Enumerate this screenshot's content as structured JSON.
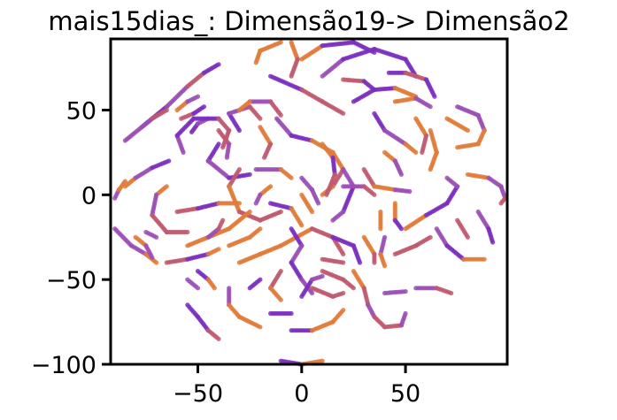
{
  "chart_data": {
    "type": "scatter",
    "title": "mais15dias_: Dimensão19-> Dimensão2",
    "xlabel": "",
    "ylabel": "",
    "xlim": [
      -92,
      99
    ],
    "ylim": [
      -100,
      92
    ],
    "xticks": [
      -50,
      0,
      50
    ],
    "xtick_labels": [
      "−50",
      "0",
      "50"
    ],
    "yticks": [
      -100,
      -50,
      0,
      50
    ],
    "ytick_labels": [
      "−100",
      "−50",
      "0",
      "50"
    ],
    "grid": false,
    "legend": "none",
    "colors": [
      "#e07b39",
      "#9b4fb5",
      "#c0596f",
      "#7b2fbe"
    ],
    "series": [
      {
        "points": [
          [
            -85,
            5
          ],
          [
            -80,
            10
          ],
          [
            -72,
            16
          ],
          [
            -64,
            20
          ]
        ]
      },
      {
        "points": [
          [
            -90,
            -2
          ],
          [
            -88,
            3
          ],
          [
            -85,
            8
          ]
        ]
      },
      {
        "points": [
          [
            -85,
            32
          ],
          [
            -75,
            42
          ],
          [
            -65,
            52
          ],
          [
            -55,
            64
          ],
          [
            -47,
            72
          ],
          [
            -40,
            77
          ]
        ]
      },
      {
        "points": [
          [
            -77,
            40
          ],
          [
            -72,
            45
          ],
          [
            -65,
            50
          ]
        ]
      },
      {
        "points": [
          [
            -60,
            50
          ],
          [
            -55,
            55
          ],
          [
            -50,
            58
          ]
        ]
      },
      {
        "points": [
          [
            -58,
            45
          ],
          [
            -52,
            48
          ],
          [
            -47,
            52
          ]
        ]
      },
      {
        "points": [
          [
            -53,
            37
          ],
          [
            -50,
            42
          ],
          [
            -45,
            45
          ]
        ]
      },
      {
        "points": [
          [
            -40,
            38
          ],
          [
            -35,
            30
          ],
          [
            -36,
            22
          ]
        ]
      },
      {
        "points": [
          [
            -57,
            25
          ],
          [
            -60,
            35
          ],
          [
            -52,
            45
          ],
          [
            -40,
            45
          ],
          [
            -35,
            38
          ],
          [
            -38,
            28
          ]
        ]
      },
      {
        "points": [
          [
            -40,
            30
          ],
          [
            -45,
            20
          ],
          [
            -35,
            10
          ],
          [
            -25,
            12
          ]
        ]
      },
      {
        "points": [
          [
            -30,
            38
          ],
          [
            -35,
            48
          ],
          [
            -25,
            52
          ],
          [
            -20,
            45
          ]
        ]
      },
      {
        "points": [
          [
            -25,
            55
          ],
          [
            -15,
            55
          ],
          [
            -10,
            47
          ]
        ]
      },
      {
        "points": [
          [
            -30,
            50
          ],
          [
            -25,
            55
          ]
        ]
      },
      {
        "points": [
          [
            -20,
            40
          ],
          [
            -15,
            30
          ],
          [
            -18,
            22
          ]
        ]
      },
      {
        "points": [
          [
            -12,
            45
          ],
          [
            -5,
            35
          ]
        ]
      },
      {
        "points": [
          [
            -10,
            90
          ],
          [
            -20,
            85
          ],
          [
            -22,
            78
          ]
        ]
      },
      {
        "points": [
          [
            -5,
            90
          ],
          [
            -2,
            80
          ],
          [
            -5,
            70
          ]
        ]
      },
      {
        "points": [
          [
            -15,
            70
          ],
          [
            0,
            62
          ],
          [
            10,
            55
          ],
          [
            20,
            48
          ]
        ]
      },
      {
        "points": [
          [
            10,
            70
          ],
          [
            20,
            80
          ],
          [
            35,
            86
          ],
          [
            50,
            80
          ],
          [
            55,
            70
          ]
        ]
      },
      {
        "points": [
          [
            0,
            80
          ],
          [
            10,
            88
          ],
          [
            25,
            90
          ],
          [
            35,
            84
          ]
        ]
      },
      {
        "points": [
          [
            20,
            68
          ],
          [
            30,
            67
          ],
          [
            35,
            62
          ]
        ]
      },
      {
        "points": [
          [
            25,
            55
          ],
          [
            35,
            62
          ],
          [
            45,
            63
          ],
          [
            55,
            58
          ]
        ]
      },
      {
        "points": [
          [
            42,
            72
          ],
          [
            50,
            72
          ],
          [
            60,
            68
          ],
          [
            64,
            58
          ]
        ]
      },
      {
        "points": [
          [
            45,
            55
          ],
          [
            55,
            57
          ],
          [
            62,
            52
          ]
        ]
      },
      {
        "points": [
          [
            35,
            48
          ],
          [
            40,
            38
          ],
          [
            50,
            30
          ],
          [
            55,
            25
          ]
        ]
      },
      {
        "points": [
          [
            55,
            45
          ],
          [
            60,
            35
          ],
          [
            58,
            25
          ]
        ]
      },
      {
        "points": [
          [
            62,
            38
          ],
          [
            65,
            25
          ],
          [
            62,
            15
          ]
        ]
      },
      {
        "points": [
          [
            75,
            52
          ],
          [
            85,
            47
          ],
          [
            88,
            38
          ],
          [
            85,
            30
          ],
          [
            75,
            28
          ]
        ]
      },
      {
        "points": [
          [
            70,
            45
          ],
          [
            80,
            38
          ]
        ]
      },
      {
        "points": [
          [
            -5,
            35
          ],
          [
            5,
            32
          ],
          [
            15,
            25
          ],
          [
            20,
            15
          ],
          [
            15,
            5
          ],
          [
            10,
            0
          ]
        ]
      },
      {
        "points": [
          [
            10,
            30
          ],
          [
            15,
            22
          ],
          [
            16,
            12
          ],
          [
            12,
            0
          ]
        ]
      },
      {
        "points": [
          [
            -30,
            15
          ],
          [
            -35,
            5
          ],
          [
            -30,
            -10
          ],
          [
            -20,
            -15
          ],
          [
            -10,
            -10
          ]
        ]
      },
      {
        "points": [
          [
            -22,
            15
          ],
          [
            -10,
            15
          ],
          [
            -5,
            10
          ]
        ]
      },
      {
        "points": [
          [
            -15,
            5
          ],
          [
            -20,
            0
          ],
          [
            -22,
            -5
          ]
        ]
      },
      {
        "points": [
          [
            -15,
            -5
          ],
          [
            -5,
            -8
          ],
          [
            0,
            -18
          ]
        ]
      },
      {
        "points": [
          [
            0,
            10
          ],
          [
            5,
            3
          ],
          [
            8,
            -5
          ]
        ]
      },
      {
        "points": [
          [
            0,
            0
          ],
          [
            5,
            -10
          ]
        ]
      },
      {
        "points": [
          [
            20,
            15
          ],
          [
            25,
            5
          ],
          [
            20,
            -10
          ],
          [
            15,
            -15
          ]
        ]
      },
      {
        "points": [
          [
            20,
            5
          ],
          [
            30,
            5
          ],
          [
            35,
            0
          ]
        ]
      },
      {
        "points": [
          [
            30,
            15
          ],
          [
            35,
            5
          ],
          [
            45,
            3
          ],
          [
            52,
            2
          ]
        ]
      },
      {
        "points": [
          [
            40,
            25
          ],
          [
            45,
            20
          ],
          [
            48,
            12
          ]
        ]
      },
      {
        "points": [
          [
            -65,
            5
          ],
          [
            -70,
            0
          ],
          [
            -72,
            -12
          ],
          [
            -65,
            -22
          ],
          [
            -55,
            -22
          ]
        ]
      },
      {
        "points": [
          [
            -60,
            -10
          ],
          [
            -50,
            -8
          ],
          [
            -40,
            -5
          ],
          [
            -30,
            -5
          ]
        ]
      },
      {
        "points": [
          [
            -55,
            -30
          ],
          [
            -45,
            -25
          ],
          [
            -35,
            -20
          ],
          [
            -25,
            -10
          ]
        ]
      },
      {
        "points": [
          [
            -90,
            -20
          ],
          [
            -82,
            -30
          ],
          [
            -75,
            -35
          ],
          [
            -70,
            -40
          ]
        ]
      },
      {
        "points": [
          [
            -80,
            -25
          ],
          [
            -75,
            -30
          ],
          [
            -72,
            -37
          ]
        ]
      },
      {
        "points": [
          [
            -75,
            -22
          ],
          [
            -70,
            -25
          ]
        ]
      },
      {
        "points": [
          [
            -65,
            -40
          ],
          [
            -55,
            -38
          ],
          [
            -45,
            -35
          ],
          [
            -40,
            -32
          ]
        ]
      },
      {
        "points": [
          [
            -45,
            -25
          ],
          [
            -40,
            -20
          ],
          [
            -38,
            -15
          ]
        ]
      },
      {
        "points": [
          [
            -35,
            -30
          ],
          [
            -25,
            -25
          ],
          [
            -20,
            -20
          ]
        ]
      },
      {
        "points": [
          [
            -30,
            -40
          ],
          [
            -20,
            -35
          ],
          [
            -10,
            -30
          ],
          [
            5,
            -20
          ],
          [
            15,
            -25
          ],
          [
            20,
            -35
          ]
        ]
      },
      {
        "points": [
          [
            -50,
            -45
          ],
          [
            -45,
            -50
          ],
          [
            -42,
            -55
          ]
        ]
      },
      {
        "points": [
          [
            -55,
            -50
          ],
          [
            -50,
            -55
          ]
        ]
      },
      {
        "points": [
          [
            -35,
            -55
          ],
          [
            -35,
            -65
          ],
          [
            -30,
            -72
          ],
          [
            -20,
            -78
          ]
        ]
      },
      {
        "points": [
          [
            -55,
            -65
          ],
          [
            -50,
            -72
          ],
          [
            -45,
            -80
          ],
          [
            -40,
            -85
          ]
        ]
      },
      {
        "points": [
          [
            -10,
            -45
          ],
          [
            -15,
            -55
          ],
          [
            -10,
            -62
          ]
        ]
      },
      {
        "points": [
          [
            -20,
            -50
          ],
          [
            -25,
            -55
          ]
        ]
      },
      {
        "points": [
          [
            -5,
            -20
          ],
          [
            0,
            -30
          ],
          [
            -5,
            -40
          ],
          [
            0,
            -50
          ],
          [
            5,
            -58
          ]
        ]
      },
      {
        "points": [
          [
            -5,
            -80
          ],
          [
            5,
            -80
          ],
          [
            15,
            -75
          ],
          [
            20,
            -68
          ]
        ]
      },
      {
        "points": [
          [
            -15,
            -70
          ],
          [
            -5,
            -70
          ]
        ]
      },
      {
        "points": [
          [
            0,
            -60
          ],
          [
            5,
            -50
          ],
          [
            10,
            -48
          ]
        ]
      },
      {
        "points": [
          [
            10,
            -45
          ],
          [
            20,
            -50
          ],
          [
            25,
            -55
          ]
        ]
      },
      {
        "points": [
          [
            10,
            -38
          ],
          [
            20,
            -40
          ]
        ]
      },
      {
        "points": [
          [
            5,
            -55
          ],
          [
            15,
            -60
          ],
          [
            20,
            -58
          ]
        ]
      },
      {
        "points": [
          [
            15,
            -25
          ],
          [
            25,
            -30
          ],
          [
            28,
            -40
          ]
        ]
      },
      {
        "points": [
          [
            30,
            -25
          ],
          [
            35,
            -35
          ],
          [
            35,
            -40
          ]
        ]
      },
      {
        "points": [
          [
            25,
            -45
          ],
          [
            30,
            -55
          ],
          [
            32,
            -65
          ],
          [
            35,
            -72
          ],
          [
            40,
            -78
          ],
          [
            48,
            -77
          ],
          [
            50,
            -70
          ]
        ]
      },
      {
        "points": [
          [
            40,
            -25
          ],
          [
            38,
            -35
          ],
          [
            40,
            -42
          ]
        ]
      },
      {
        "points": [
          [
            45,
            -5
          ],
          [
            45,
            -15
          ],
          [
            48,
            -20
          ]
        ]
      },
      {
        "points": [
          [
            38,
            -10
          ],
          [
            38,
            -20
          ]
        ]
      },
      {
        "points": [
          [
            45,
            -35
          ],
          [
            55,
            -30
          ],
          [
            62,
            -25
          ]
        ]
      },
      {
        "points": [
          [
            50,
            -20
          ],
          [
            60,
            -12
          ],
          [
            70,
            -5
          ],
          [
            75,
            5
          ],
          [
            70,
            10
          ]
        ]
      },
      {
        "points": [
          [
            55,
            -55
          ],
          [
            65,
            -55
          ],
          [
            72,
            -58
          ]
        ]
      },
      {
        "points": [
          [
            40,
            -58
          ],
          [
            50,
            -57
          ]
        ]
      },
      {
        "points": [
          [
            65,
            -20
          ],
          [
            70,
            -30
          ],
          [
            78,
            -38
          ],
          [
            88,
            -38
          ]
        ]
      },
      {
        "points": [
          [
            80,
            12
          ],
          [
            90,
            10
          ],
          [
            96,
            5
          ],
          [
            98,
            -2
          ],
          [
            96,
            -5
          ]
        ]
      },
      {
        "points": [
          [
            85,
            -10
          ],
          [
            90,
            -20
          ],
          [
            92,
            -28
          ]
        ]
      },
      {
        "points": [
          [
            75,
            -15
          ],
          [
            80,
            -25
          ]
        ]
      },
      {
        "points": [
          [
            -10,
            -98
          ],
          [
            0,
            -100
          ],
          [
            10,
            -98
          ]
        ]
      }
    ]
  }
}
